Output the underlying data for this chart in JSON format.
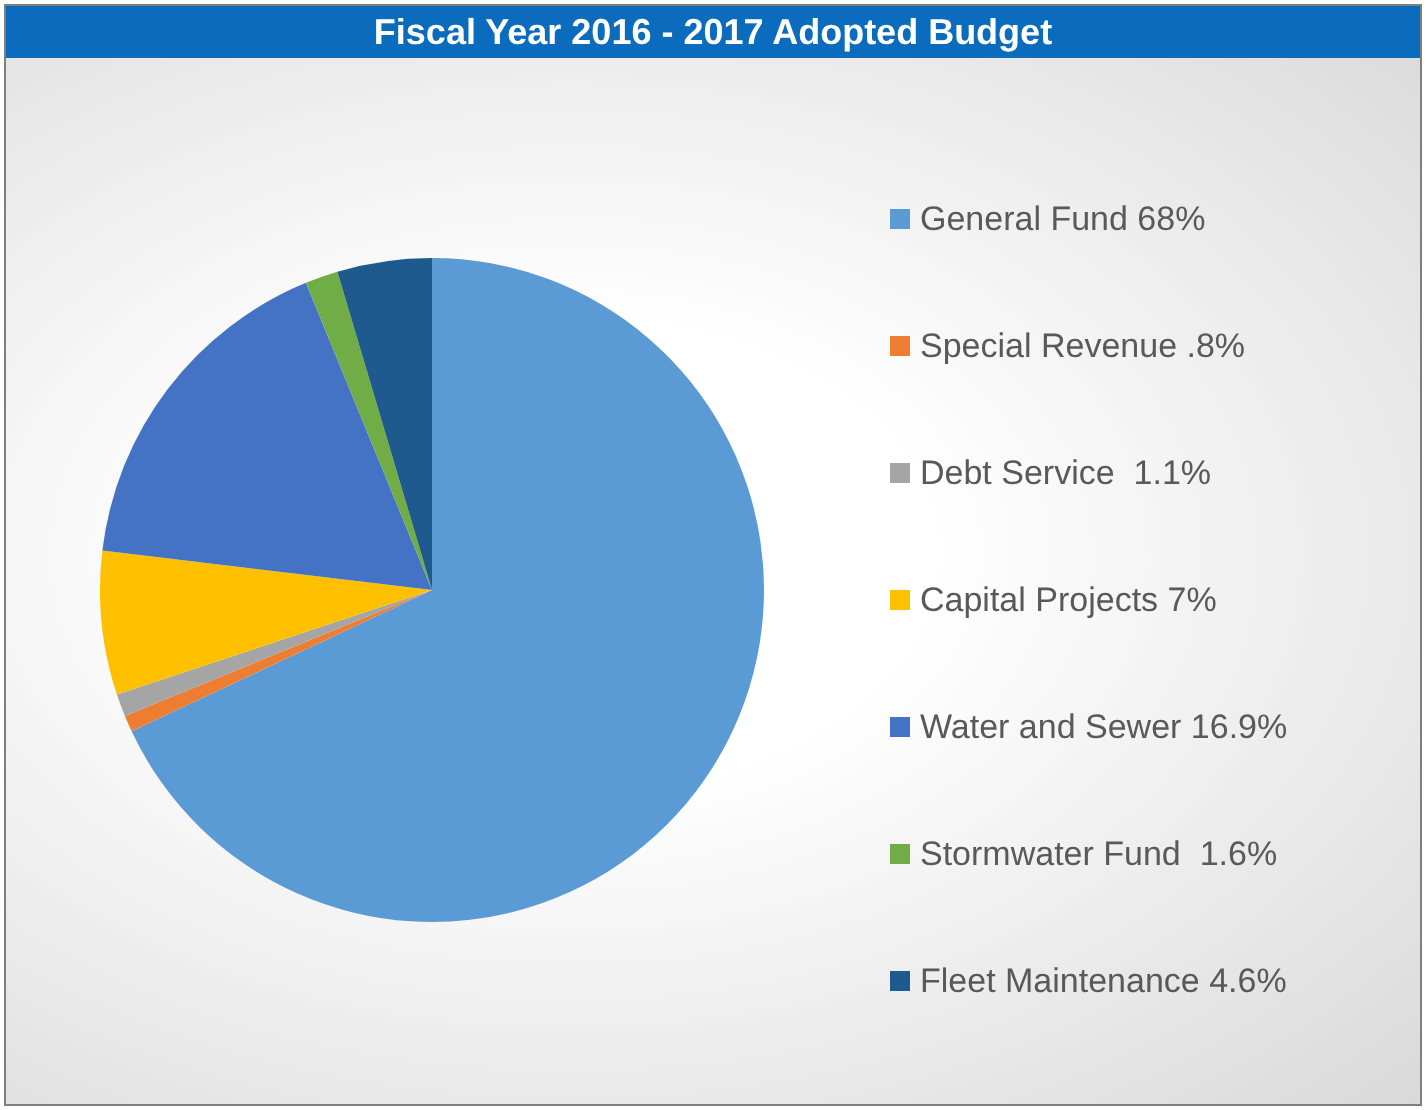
{
  "chart_data": {
    "type": "pie",
    "title": "Fiscal Year 2016 - 2017 Adopted Budget",
    "categories": [
      "General Fund 68%",
      "Special Revenue .8%",
      "Debt Service  1.1%",
      "Capital Projects 7%",
      "Water and Sewer 16.9%",
      "Stormwater Fund  1.6%",
      "Fleet Maintenance 4.6%"
    ],
    "values": [
      68,
      0.8,
      1.1,
      7,
      16.9,
      1.6,
      4.6
    ],
    "colors": [
      "#5b9bd5",
      "#ed7d31",
      "#a5a5a5",
      "#ffc000",
      "#4472c4",
      "#70ad47",
      "#1f5a8e"
    ],
    "legend": "right"
  }
}
